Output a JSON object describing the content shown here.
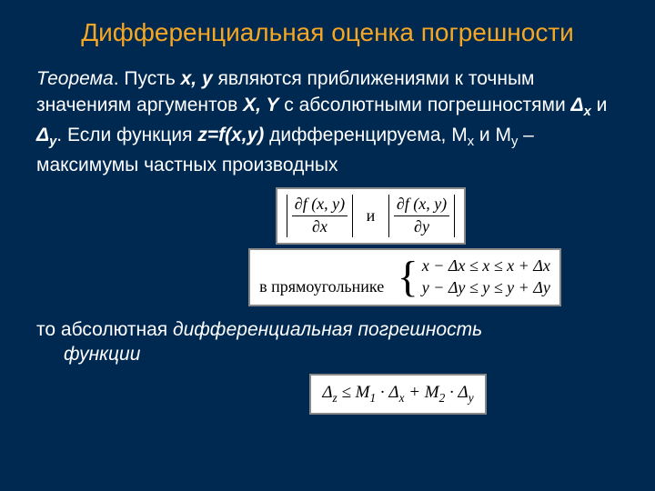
{
  "colors": {
    "background": "#002952",
    "title": "#f5a623",
    "text": "#ffffff",
    "formula_bg": "#ffffff",
    "formula_text": "#000000",
    "formula_border": "#888888"
  },
  "title": "Дифференциальная оценка погрешности",
  "p1": {
    "t1": "Теорема",
    "t2": ". Пусть ",
    "t3": "x, y",
    "t4": " являются приближениями к точным значениям аргументов ",
    "t5": "X, Y",
    "t6": " с абсолютными погрешностями ",
    "t7": "Δ",
    "t7sub": "x",
    "t8": " и ",
    "t9": "Δ",
    "t9sub": "y",
    "t10": ". Если функция ",
    "t11": "z=f(x,y)",
    "t12": " дифференцируема, M",
    "t12sub": "x",
    "t13": " и M",
    "t13sub": "y",
    "t14": " – максимумы частных производных"
  },
  "formula1": {
    "num1": "∂f (x, y)",
    "den1": "∂x",
    "mid": "и",
    "num2": "∂f (x, y)",
    "den2": "∂y"
  },
  "formula2": {
    "prefix": "в прямоугольнике",
    "line1": "x − Δx ≤ x ≤ x + Δx",
    "line2": "y − Δy ≤ y ≤ y + Δy"
  },
  "p2": {
    "t1": "то абсолютная ",
    "t2": "дифференциальная погрешность",
    "t3": "функции"
  },
  "formula3": {
    "expr_lhs": "Δ",
    "expr_lhs_sub": "z",
    "expr_mid1": " ≤ M",
    "expr_sub1": "1",
    "expr_mid2": " · Δ",
    "expr_sub2": "x",
    "expr_mid3": " + M",
    "expr_sub3": "2",
    "expr_mid4": " · Δ",
    "expr_sub4": "y"
  }
}
